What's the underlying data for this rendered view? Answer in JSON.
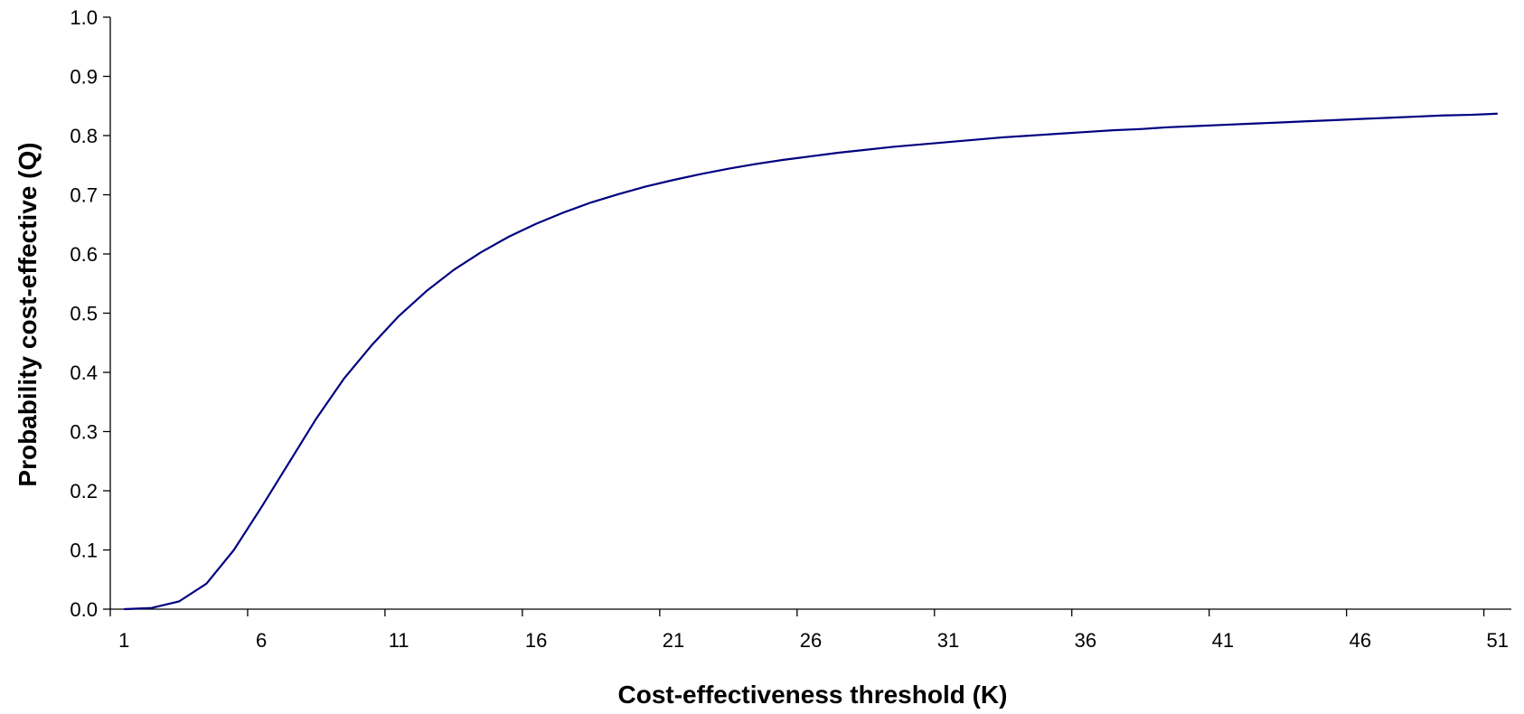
{
  "chart_data": {
    "type": "line",
    "title": "",
    "xlabel": "Cost-effectiveness threshold (K)",
    "ylabel": "Probability cost-effective (Q)",
    "xlim": [
      0.5,
      51.5
    ],
    "ylim": [
      0,
      1
    ],
    "x_ticks": [
      "1",
      "6",
      "11",
      "16",
      "21",
      "26",
      "31",
      "36",
      "41",
      "46",
      "51"
    ],
    "y_ticks": [
      "0.0",
      "0.1",
      "0.2",
      "0.3",
      "0.4",
      "0.5",
      "0.6",
      "0.7",
      "0.8",
      "0.9",
      "1.0"
    ],
    "grid": false,
    "legend": "none",
    "series": [
      {
        "color": "#000080",
        "x": [
          1,
          2,
          3,
          4,
          5,
          6,
          7,
          8,
          9,
          10,
          11,
          12,
          13,
          14,
          15,
          16,
          17,
          18,
          19,
          20,
          21,
          22,
          23,
          24,
          25,
          26,
          27,
          28,
          29,
          30,
          31,
          32,
          33,
          34,
          35,
          36,
          37,
          38,
          39,
          40,
          41,
          42,
          43,
          44,
          45,
          46,
          47,
          48,
          49,
          50,
          51
        ],
        "y": [
          0.0,
          0.002,
          0.013,
          0.043,
          0.1,
          0.172,
          0.247,
          0.322,
          0.389,
          0.445,
          0.495,
          0.537,
          0.573,
          0.603,
          0.629,
          0.651,
          0.67,
          0.687,
          0.701,
          0.714,
          0.725,
          0.735,
          0.744,
          0.752,
          0.759,
          0.765,
          0.771,
          0.776,
          0.781,
          0.785,
          0.789,
          0.793,
          0.797,
          0.8,
          0.803,
          0.806,
          0.809,
          0.811,
          0.814,
          0.816,
          0.818,
          0.82,
          0.822,
          0.824,
          0.826,
          0.828,
          0.83,
          0.832,
          0.834,
          0.835,
          0.837
        ]
      }
    ]
  }
}
